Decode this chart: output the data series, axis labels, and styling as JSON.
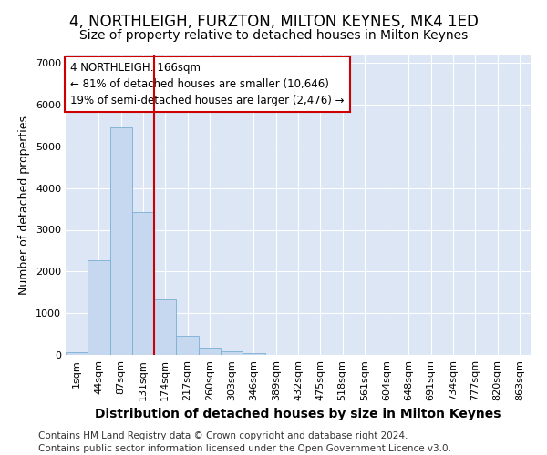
{
  "title": "4, NORTHLEIGH, FURZTON, MILTON KEYNES, MK4 1ED",
  "subtitle": "Size of property relative to detached houses in Milton Keynes",
  "xlabel": "Distribution of detached houses by size in Milton Keynes",
  "ylabel": "Number of detached properties",
  "categories": [
    "1sqm",
    "44sqm",
    "87sqm",
    "131sqm",
    "174sqm",
    "217sqm",
    "260sqm",
    "303sqm",
    "346sqm",
    "389sqm",
    "432sqm",
    "475sqm",
    "518sqm",
    "561sqm",
    "604sqm",
    "648sqm",
    "691sqm",
    "734sqm",
    "777sqm",
    "820sqm",
    "863sqm"
  ],
  "values": [
    70,
    2270,
    5450,
    3430,
    1330,
    460,
    180,
    80,
    50,
    0,
    0,
    0,
    0,
    0,
    0,
    0,
    0,
    0,
    0,
    0,
    0
  ],
  "bar_color": "#c5d8ef",
  "bar_edge_color": "#7bafd4",
  "vline_pos": 3.5,
  "vline_color": "#cc0000",
  "annotation_text": "4 NORTHLEIGH: 166sqm\n← 81% of detached houses are smaller (10,646)\n19% of semi-detached houses are larger (2,476) →",
  "ylim": [
    0,
    7200
  ],
  "yticks": [
    0,
    1000,
    2000,
    3000,
    4000,
    5000,
    6000,
    7000
  ],
  "bg_color": "#ffffff",
  "plot_bg_color": "#dce6f5",
  "footer_line1": "Contains HM Land Registry data © Crown copyright and database right 2024.",
  "footer_line2": "Contains public sector information licensed under the Open Government Licence v3.0.",
  "title_fontsize": 12,
  "subtitle_fontsize": 10,
  "xlabel_fontsize": 10,
  "ylabel_fontsize": 9,
  "tick_fontsize": 8,
  "footer_fontsize": 7.5
}
